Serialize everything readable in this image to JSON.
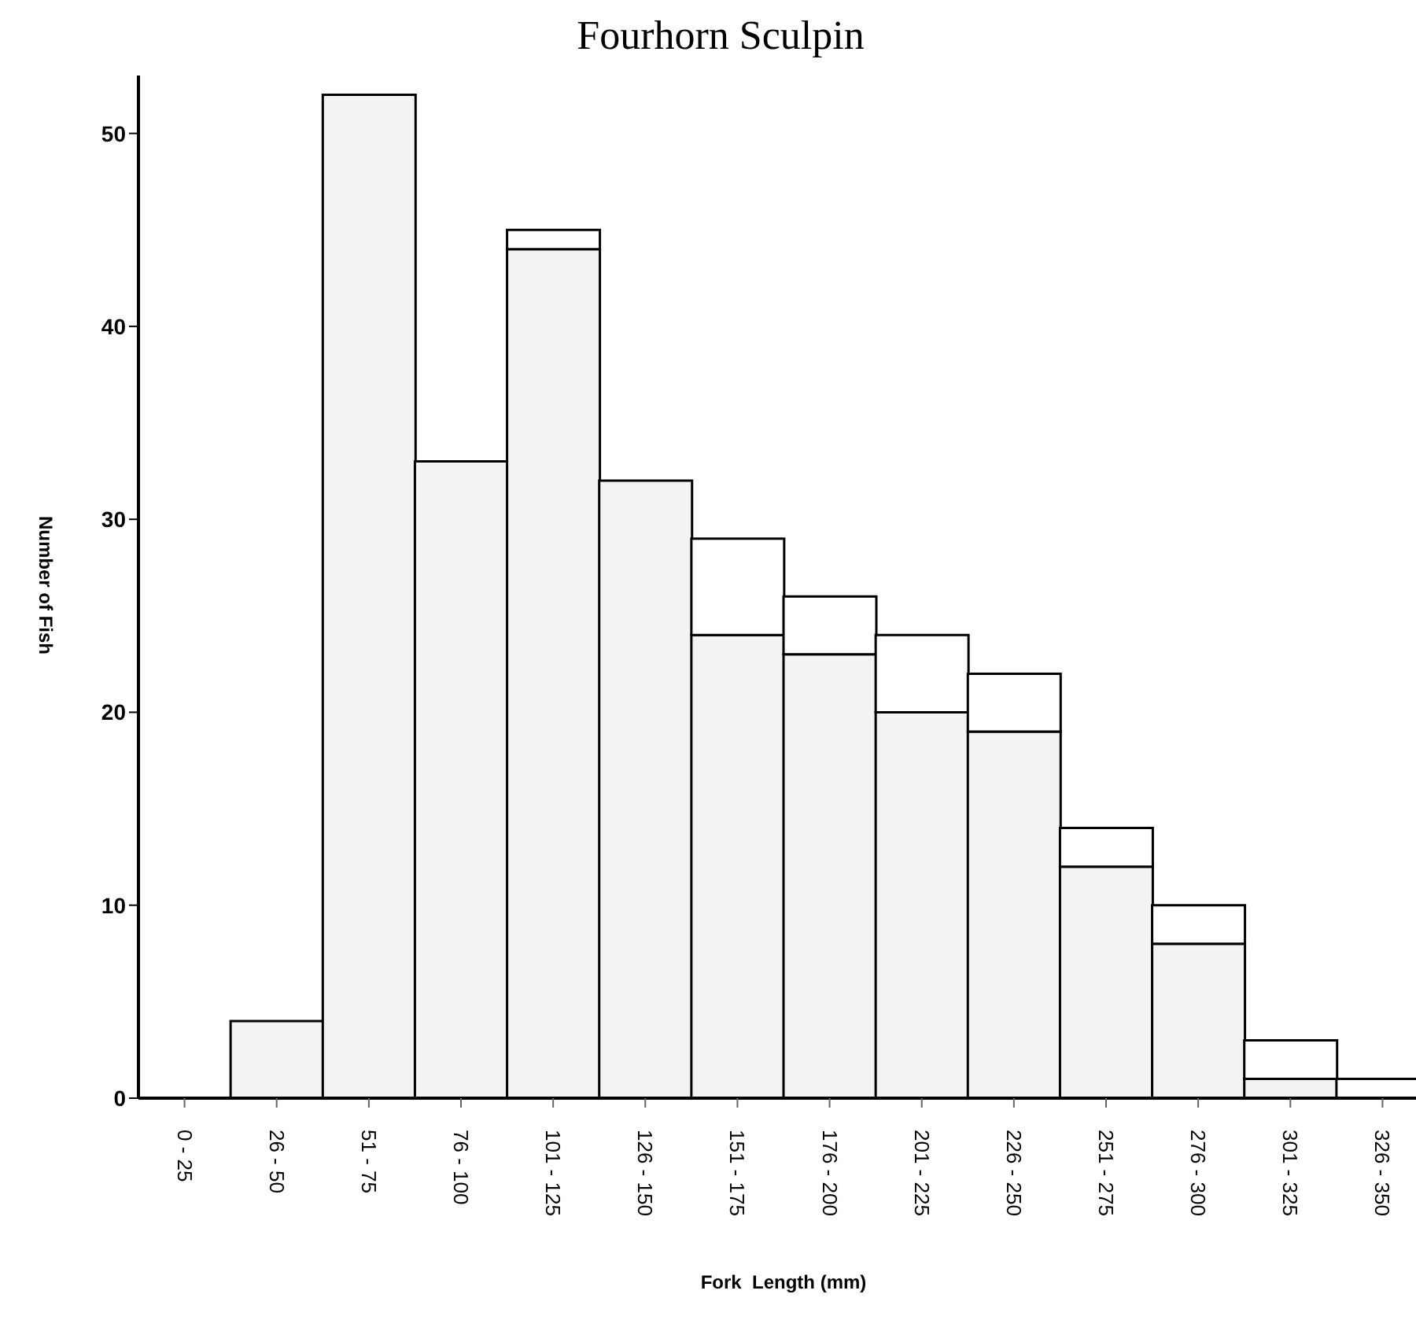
{
  "chart_data": {
    "type": "bar",
    "title": "Fourhorn Sculpin",
    "xlabel": "Fork  Length (mm)",
    "ylabel": "Number  of  Fish",
    "categories": [
      "0 - 25",
      "26 - 50",
      "51 - 75",
      "76 - 100",
      "101 - 125",
      "126 - 150",
      "151 - 175",
      "176 - 200",
      "201 - 225",
      "226 - 250",
      "251 - 275",
      "276 - 300",
      "301 - 325",
      "326 - 350"
    ],
    "stacked": true,
    "series": [
      {
        "color": "#f3f3f3",
        "values": [
          0,
          4,
          52,
          33,
          44,
          32,
          24,
          23,
          20,
          19,
          12,
          8,
          1,
          0
        ]
      },
      {
        "color": "#ffffff",
        "values": [
          0,
          0,
          0,
          0,
          1,
          0,
          5,
          3,
          4,
          3,
          2,
          2,
          2,
          1
        ]
      }
    ],
    "ylim": [
      0,
      53
    ],
    "yticks": [
      0,
      10,
      20,
      30,
      40,
      50
    ],
    "legend": false
  }
}
